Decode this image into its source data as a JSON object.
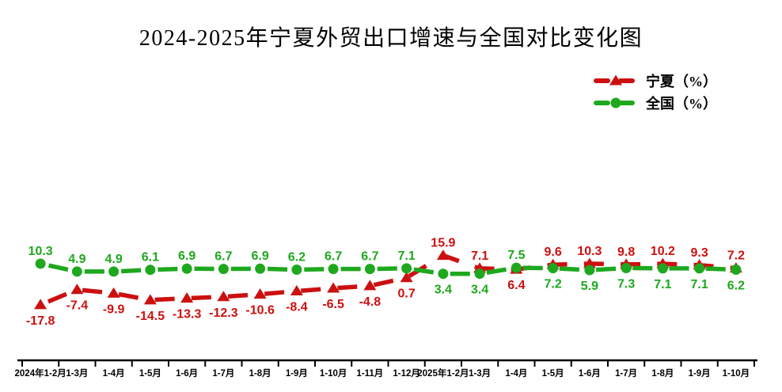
{
  "title": "2024-2025年宁夏外贸出口增速与全国对比变化图",
  "chart_data": {
    "type": "line",
    "title": "2024-2025年宁夏外贸出口增速与全国对比变化图",
    "categories": [
      "2024年1-2月",
      "1-3月",
      "1-4月",
      "1-5月",
      "1-6月",
      "1-7月",
      "1-8月",
      "1-9月",
      "1-10月",
      "1-11月",
      "1-12月",
      "2025年1-2月",
      "1-3月",
      "1-4月",
      "1-5月",
      "1-6月",
      "1-7月",
      "1-8月",
      "1-9月",
      "1-10月"
    ],
    "series": [
      {
        "name": "宁夏（%）",
        "color": "#cc1010",
        "marker": "triangle",
        "values": [
          -17.8,
          -7.4,
          -9.9,
          -14.5,
          -13.3,
          -12.3,
          -10.6,
          -8.4,
          -6.5,
          -4.8,
          0.7,
          15.9,
          7.1,
          6.4,
          9.6,
          10.3,
          9.8,
          10.2,
          9.3,
          7.2
        ],
        "label_positions": [
          "below",
          "below",
          "below",
          "below",
          "below",
          "below",
          "below",
          "below",
          "below",
          "below",
          "below",
          "above",
          "above",
          "below",
          "above",
          "above",
          "above",
          "above",
          "above",
          "above"
        ]
      },
      {
        "name": "全国（%）",
        "color": "#1ea81e",
        "marker": "circle",
        "values": [
          10.3,
          4.9,
          4.9,
          6.1,
          6.9,
          6.7,
          6.9,
          6.2,
          6.7,
          6.7,
          7.1,
          3.4,
          3.4,
          7.5,
          7.2,
          5.9,
          7.3,
          7.1,
          7.1,
          6.2
        ],
        "label_positions": [
          "above",
          "above",
          "above",
          "above",
          "above",
          "above",
          "above",
          "above",
          "above",
          "above",
          "above",
          "below",
          "below",
          "above",
          "below",
          "below",
          "below",
          "below",
          "below",
          "below"
        ]
      }
    ],
    "line_style": "dashed",
    "data_labels": true,
    "legend_position": "top-right",
    "axes": {
      "x_labels_visible": true,
      "y_axis_visible": false,
      "gridlines": false,
      "axis_color": "#000000"
    }
  }
}
